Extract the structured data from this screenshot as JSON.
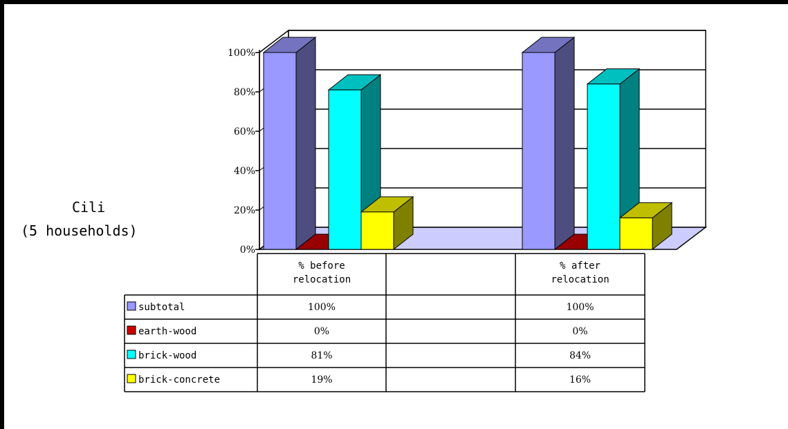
{
  "side_label": {
    "title": "Cili",
    "subtitle": "(5 households)"
  },
  "colors": {
    "subtotal": "#9999ff",
    "earth_wood": "#cc0000",
    "brick_wood": "#00ffff",
    "brick_concrete": "#ffff00",
    "floor": "#ccccff"
  },
  "chart_data": {
    "type": "bar",
    "categories": [
      "% before relocation",
      "",
      "% after relocation"
    ],
    "category_lines": [
      [
        "% before",
        "relocation"
      ],
      [],
      [
        "% after",
        "relocation"
      ]
    ],
    "series": [
      {
        "name": "subtotal",
        "values": [
          100,
          null,
          100
        ],
        "labels": [
          "100%",
          "",
          "100%"
        ]
      },
      {
        "name": "earth-wood",
        "values": [
          0,
          null,
          0
        ],
        "labels": [
          "0%",
          "",
          "0%"
        ]
      },
      {
        "name": "brick-wood",
        "values": [
          81,
          null,
          84
        ],
        "labels": [
          "81%",
          "",
          "84%"
        ]
      },
      {
        "name": "brick-concrete",
        "values": [
          19,
          null,
          16
        ],
        "labels": [
          "19%",
          "",
          "16%"
        ]
      }
    ],
    "y_ticks": [
      "0%",
      "20%",
      "40%",
      "60%",
      "80%",
      "100%"
    ],
    "ylim": [
      0,
      100
    ],
    "grid": true,
    "legend": "data table below chart",
    "style": "3d-column"
  }
}
